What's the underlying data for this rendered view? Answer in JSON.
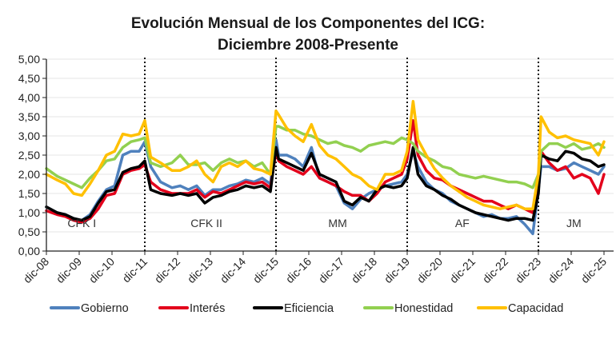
{
  "chart_data": {
    "type": "line",
    "title": "Evolución Mensual de los Componentes del ICG:",
    "subtitle": "Diciembre 2008-Presente",
    "xlabel": "",
    "ylabel": "",
    "ylim": [
      0,
      5
    ],
    "yticks": [
      "0,00",
      "0,50",
      "1,00",
      "1,50",
      "2,00",
      "2,50",
      "3,00",
      "3,50",
      "4,00",
      "4,50",
      "5,00"
    ],
    "ytick_values": [
      0,
      0.5,
      1,
      1.5,
      2,
      2.5,
      3,
      3.5,
      4,
      4.5,
      5
    ],
    "xlim": [
      2008.92,
      2025.92
    ],
    "xticks": [
      "dic-08",
      "dic-09",
      "dic-10",
      "dic-11",
      "dic-12",
      "dic-13",
      "dic-14",
      "dic-15",
      "dic-16",
      "dic-17",
      "dic-18",
      "dic-19",
      "dic-20",
      "dic-21",
      "dic-22",
      "dic-23",
      "dic-24",
      "dic-25"
    ],
    "grid": true,
    "legend_position": "bottom",
    "periods": [
      {
        "label": "CFK I",
        "x": 2010.0
      },
      {
        "label": "CFK II",
        "x": 2013.8
      },
      {
        "label": "MM",
        "x": 2017.8
      },
      {
        "label": "AF",
        "x": 2021.6
      },
      {
        "label": "JM",
        "x": 2025.0
      }
    ],
    "period_dividers": [
      2011.92,
      2015.92,
      2019.92,
      2023.92
    ],
    "x": [
      2008.92,
      2009.25,
      2009.5,
      2009.75,
      2010.0,
      2010.25,
      2010.5,
      2010.75,
      2011.0,
      2011.25,
      2011.5,
      2011.75,
      2011.92,
      2012.1,
      2012.4,
      2012.75,
      2013.0,
      2013.25,
      2013.5,
      2013.75,
      2014.0,
      2014.25,
      2014.5,
      2014.75,
      2015.0,
      2015.25,
      2015.5,
      2015.75,
      2015.92,
      2016.0,
      2016.25,
      2016.5,
      2016.75,
      2017.0,
      2017.25,
      2017.5,
      2017.75,
      2018.0,
      2018.25,
      2018.5,
      2018.75,
      2019.0,
      2019.25,
      2019.5,
      2019.75,
      2019.92,
      2020.1,
      2020.25,
      2020.5,
      2020.75,
      2021.0,
      2021.25,
      2021.5,
      2021.75,
      2022.0,
      2022.25,
      2022.5,
      2022.75,
      2023.0,
      2023.25,
      2023.5,
      2023.75,
      2023.92,
      2024.0,
      2024.25,
      2024.5,
      2024.75,
      2025.0,
      2025.25,
      2025.5,
      2025.75,
      2025.92
    ],
    "series": [
      {
        "name": "Gobierno",
        "color": "#4f81bd",
        "values": [
          1.15,
          1.0,
          0.95,
          0.85,
          0.8,
          0.95,
          1.3,
          1.6,
          1.7,
          2.5,
          2.6,
          2.6,
          2.85,
          2.2,
          1.8,
          1.65,
          1.7,
          1.6,
          1.7,
          1.45,
          1.6,
          1.6,
          1.7,
          1.75,
          1.85,
          1.8,
          1.9,
          1.75,
          2.9,
          2.5,
          2.5,
          2.4,
          2.2,
          2.7,
          1.9,
          1.8,
          1.7,
          1.25,
          1.1,
          1.35,
          1.5,
          1.6,
          1.7,
          1.75,
          1.8,
          2.0,
          2.6,
          2.2,
          1.8,
          1.6,
          1.5,
          1.3,
          1.2,
          1.1,
          1.0,
          0.9,
          0.95,
          0.85,
          0.85,
          0.9,
          0.7,
          0.45,
          1.6,
          2.2,
          2.2,
          2.1,
          2.15,
          2.3,
          2.2,
          2.1,
          2.0,
          2.2
        ]
      },
      {
        "name": "Interés",
        "color": "#e3001b",
        "values": [
          1.05,
          0.95,
          0.9,
          0.8,
          0.75,
          0.85,
          1.1,
          1.45,
          1.5,
          2.0,
          2.1,
          2.15,
          2.25,
          1.8,
          1.6,
          1.5,
          1.5,
          1.5,
          1.6,
          1.4,
          1.55,
          1.5,
          1.6,
          1.7,
          1.8,
          1.75,
          1.8,
          1.65,
          2.6,
          2.35,
          2.2,
          2.1,
          2.0,
          2.2,
          1.9,
          1.8,
          1.7,
          1.55,
          1.45,
          1.45,
          1.3,
          1.5,
          1.8,
          1.9,
          2.0,
          2.4,
          3.4,
          2.5,
          2.1,
          1.9,
          1.85,
          1.7,
          1.6,
          1.5,
          1.4,
          1.3,
          1.3,
          1.2,
          1.1,
          1.2,
          1.1,
          1.0,
          1.8,
          2.6,
          2.3,
          2.1,
          2.2,
          1.9,
          2.0,
          1.9,
          1.5,
          2.0
        ]
      },
      {
        "name": "Eficiencia",
        "color": "#000000",
        "values": [
          1.15,
          1.0,
          0.95,
          0.85,
          0.8,
          0.9,
          1.25,
          1.55,
          1.6,
          2.05,
          2.15,
          2.2,
          2.35,
          1.6,
          1.5,
          1.45,
          1.5,
          1.45,
          1.5,
          1.25,
          1.4,
          1.45,
          1.55,
          1.6,
          1.7,
          1.65,
          1.7,
          1.55,
          2.7,
          2.4,
          2.3,
          2.2,
          2.1,
          2.55,
          2.0,
          1.9,
          1.8,
          1.3,
          1.2,
          1.4,
          1.3,
          1.6,
          1.7,
          1.65,
          1.7,
          1.9,
          2.7,
          2.0,
          1.7,
          1.6,
          1.45,
          1.35,
          1.2,
          1.1,
          1.0,
          0.95,
          0.9,
          0.85,
          0.8,
          0.85,
          0.85,
          0.8,
          1.5,
          2.5,
          2.4,
          2.35,
          2.6,
          2.55,
          2.4,
          2.35,
          2.2,
          2.25
        ]
      },
      {
        "name": "Honestidad",
        "color": "#92d050",
        "values": [
          2.15,
          1.95,
          1.85,
          1.75,
          1.65,
          1.9,
          2.1,
          2.35,
          2.4,
          2.7,
          2.85,
          2.9,
          2.95,
          2.3,
          2.2,
          2.3,
          2.5,
          2.25,
          2.25,
          2.3,
          2.1,
          2.3,
          2.4,
          2.3,
          2.35,
          2.2,
          2.3,
          2.0,
          3.25,
          3.25,
          3.15,
          3.15,
          3.05,
          3.0,
          2.9,
          2.8,
          2.85,
          2.75,
          2.7,
          2.6,
          2.75,
          2.8,
          2.85,
          2.8,
          2.95,
          2.9,
          2.8,
          2.6,
          2.45,
          2.35,
          2.2,
          2.15,
          2.0,
          1.95,
          1.9,
          1.95,
          1.9,
          1.85,
          1.8,
          1.8,
          1.75,
          1.65,
          2.0,
          2.6,
          2.8,
          2.8,
          2.7,
          2.8,
          2.65,
          2.7,
          2.8,
          2.7
        ]
      },
      {
        "name": "Capacidad",
        "color": "#ffc000",
        "values": [
          2.0,
          1.85,
          1.75,
          1.5,
          1.45,
          1.75,
          2.1,
          2.5,
          2.6,
          3.05,
          3.0,
          3.05,
          3.4,
          2.45,
          2.3,
          2.1,
          2.1,
          2.2,
          2.35,
          2.0,
          1.8,
          2.2,
          2.3,
          2.2,
          2.35,
          2.15,
          2.1,
          2.0,
          3.65,
          3.55,
          3.2,
          3.0,
          2.85,
          3.3,
          2.75,
          2.5,
          2.4,
          2.2,
          2.0,
          1.9,
          1.7,
          1.6,
          2.0,
          2.0,
          2.1,
          2.6,
          3.9,
          2.9,
          2.5,
          2.15,
          1.9,
          1.7,
          1.55,
          1.4,
          1.3,
          1.2,
          1.15,
          1.1,
          1.15,
          1.2,
          1.1,
          1.1,
          2.0,
          3.5,
          3.1,
          2.95,
          3.0,
          2.9,
          2.85,
          2.8,
          2.5,
          2.85
        ]
      }
    ]
  }
}
